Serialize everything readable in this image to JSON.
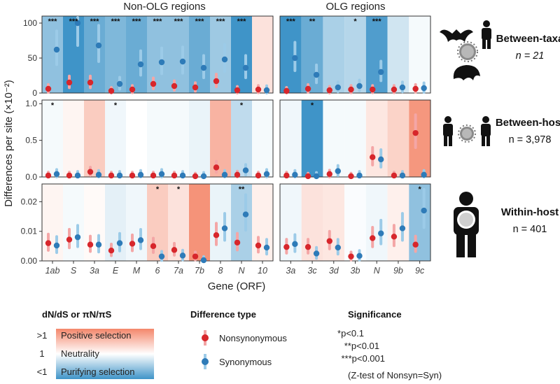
{
  "chart_data": {
    "type": "scatter",
    "panel_titles": [
      "Non-OLG regions",
      "OLG regions"
    ],
    "xlabel": "Gene (ORF)",
    "ylabel": "Differences per site (×10⁻²)",
    "genes_nonolg": [
      "1ab",
      "S",
      "3a",
      "E",
      "M",
      "6",
      "7a",
      "7b",
      "8",
      "N",
      "10"
    ],
    "genes_olg": [
      "3a",
      "3c",
      "3d",
      "3b",
      "N",
      "9b",
      "9c"
    ],
    "rows": [
      {
        "name": "Between-taxa",
        "n_label": "n = 21",
        "ylim": [
          0,
          110
        ],
        "yticks": [
          "0",
          "50",
          "100"
        ],
        "nonolg": {
          "nonsyn": [
            6,
            15,
            15,
            3,
            5,
            13,
            10,
            8,
            17,
            4,
            5
          ],
          "syn": [
            62,
            100,
            68,
            13,
            41,
            44,
            45,
            36,
            48,
            36,
            4
          ],
          "ratio": [
            0.3,
            0.05,
            0.2,
            0.25,
            0.2,
            0.3,
            0.3,
            0.2,
            0.35,
            0.1,
            1.3
          ],
          "sig": [
            "***",
            "***",
            "***",
            "***",
            "***",
            "***",
            "***",
            "***",
            "***",
            "***",
            ""
          ]
        },
        "olg": {
          "nonsyn": [
            3,
            6,
            4,
            5,
            5,
            5,
            6
          ],
          "syn": [
            50,
            26,
            8,
            10,
            30,
            8,
            7
          ],
          "ratio": [
            0.05,
            0.2,
            0.4,
            0.45,
            0.15,
            0.6,
            0.9
          ],
          "sig": [
            "***",
            "**",
            "",
            "*",
            "***",
            "",
            ""
          ]
        }
      },
      {
        "name": "Between-host",
        "n_label": "n = 3,978",
        "ylim": [
          0,
          1.05
        ],
        "yticks": [
          "0.0",
          "0.5",
          "1.0"
        ],
        "nonolg": {
          "nonsyn": [
            0.02,
            0.02,
            0.07,
            0.02,
            0.02,
            0.02,
            0.02,
            0.01,
            0.13,
            0.03,
            0.02
          ],
          "syn": [
            0.04,
            0.02,
            0.03,
            0.02,
            0.03,
            0.04,
            0.02,
            0.01,
            0.03,
            0.09,
            0.04
          ],
          "ratio": [
            0.9,
            1.1,
            1.6,
            0.85,
            1.0,
            0.9,
            0.9,
            0.8,
            2.0,
            0.5,
            0.9
          ],
          "sig": [
            "*",
            "",
            "",
            "*",
            "",
            "",
            "",
            "",
            "",
            "*",
            ""
          ]
        },
        "olg": {
          "nonsyn": [
            0.02,
            0.01,
            0.04,
            0.01,
            0.27,
            0.02,
            0.6
          ],
          "syn": [
            0.03,
            0.01,
            0.08,
            0.02,
            0.24,
            0.02,
            0.03
          ],
          "ratio": [
            0.85,
            0.03,
            0.9,
            0.9,
            1.25,
            1.5,
            2.6
          ],
          "sig": [
            "",
            "*",
            "",
            "",
            "",
            "",
            ""
          ]
        }
      },
      {
        "name": "Within-host",
        "n_label": "n = 401",
        "ylim": [
          0,
          0.026
        ],
        "yticks": [
          "0.00",
          "0.01",
          "0.02"
        ],
        "nonolg": {
          "nonsyn": [
            0.006,
            0.0072,
            0.0055,
            0.0035,
            0.0058,
            0.005,
            0.0037,
            0.0015,
            0.0087,
            0.0062,
            0.0052
          ],
          "syn": [
            0.0052,
            0.008,
            0.0055,
            0.006,
            0.007,
            0.0015,
            0.0018,
            0.0002,
            0.011,
            0.0157,
            0.0045
          ],
          "ratio": [
            1.1,
            0.9,
            1.05,
            0.75,
            0.85,
            1.6,
            1.3,
            2.7,
            0.8,
            0.4,
            1.15
          ],
          "sig": [
            "",
            "",
            "",
            "",
            "",
            "*",
            "*",
            "",
            "",
            "**",
            ""
          ]
        },
        "olg": {
          "nonsyn": [
            0.0047,
            0.0047,
            0.0067,
            0.0015,
            0.0077,
            0.0082,
            0.0055
          ],
          "syn": [
            0.0057,
            0.0025,
            0.0045,
            0.0017,
            0.0093,
            0.011,
            0.017
          ],
          "ratio": [
            0.85,
            1.3,
            1.25,
            0.95,
            0.85,
            1.15,
            0.3
          ],
          "sig": [
            "",
            "",
            "",
            "",
            "",
            "",
            "*"
          ]
        }
      }
    ],
    "legend": {
      "ratio_title": "dN/dS or πN/πS",
      "ratio_levels": [
        ">1",
        "1",
        "<1"
      ],
      "ratio_labels": [
        "Positive selection",
        "Neutrality",
        "Purifying selection"
      ],
      "diff_title": "Difference type",
      "diff_items": [
        "Nonsynonymous",
        "Synonymous"
      ],
      "sig_title": "Significance",
      "sig_items": [
        "*p<0.1",
        "**p<0.01",
        "***p<0.001"
      ],
      "sig_note": "(Z-test of Nonsyn=Syn)"
    },
    "colors": {
      "nonsyn": "#d7262b",
      "syn": "#2e7bb8",
      "pos": "#f4876b",
      "neg": "#3f94c8"
    }
  }
}
